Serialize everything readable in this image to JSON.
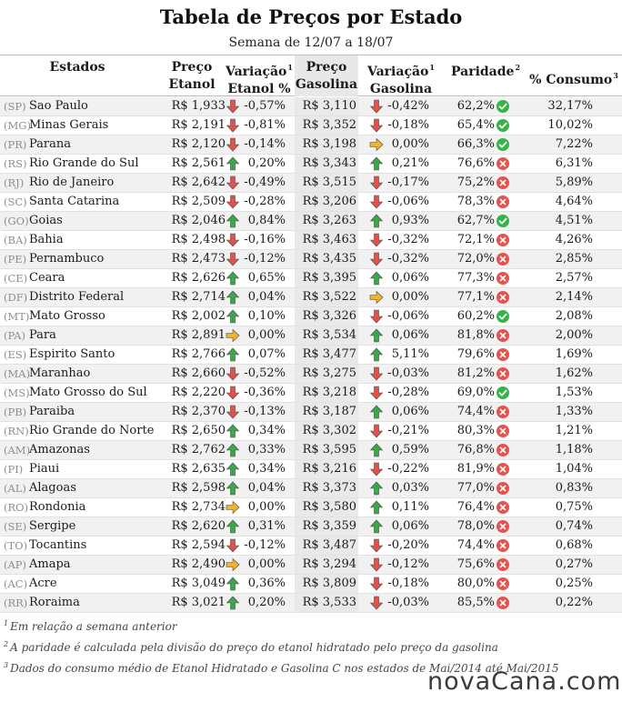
{
  "title": "Tabela de Preços por Estado",
  "subtitle": "Semana de 12/07 a 18/07",
  "columns": {
    "estados": "Estados",
    "preco_etanol_l1": "Preço",
    "preco_etanol_l2": "Etanol",
    "var_etanol_l1": "Variação",
    "var_etanol_l2": "Etanol %",
    "var_etanol_sup": "1",
    "preco_gas_l1": "Preço",
    "preco_gas_l2": "Gasolina",
    "var_gas_l1": "Variação",
    "var_gas_l2": "Gasolina %",
    "var_gas_sup": "1",
    "paridade": "Paridade",
    "paridade_sup": "2",
    "consumo": "% Consumo",
    "consumo_sup": "3"
  },
  "colors": {
    "up": "#39a84a",
    "down": "#e2524d",
    "flat": "#f4b32c",
    "ok": "#35b44a",
    "no": "#e5524f"
  },
  "rows": [
    {
      "abbr": "(SP)",
      "name": "Sao Paulo",
      "etanol": "R$ 1,933",
      "dir1": "down",
      "var1": "-0,57%",
      "gas": "R$ 3,110",
      "dir2": "down",
      "var2": "-0,42%",
      "par": "62,2%",
      "ok": true,
      "cons": "32,17%"
    },
    {
      "abbr": "(MG)",
      "name": "Minas Gerais",
      "etanol": "R$ 2,191",
      "dir1": "down",
      "var1": "-0,81%",
      "gas": "R$ 3,352",
      "dir2": "down",
      "var2": "-0,18%",
      "par": "65,4%",
      "ok": true,
      "cons": "10,02%"
    },
    {
      "abbr": "(PR)",
      "name": "Parana",
      "etanol": "R$ 2,120",
      "dir1": "down",
      "var1": "-0,14%",
      "gas": "R$ 3,198",
      "dir2": "flat",
      "var2": "0,00%",
      "par": "66,3%",
      "ok": true,
      "cons": "7,22%"
    },
    {
      "abbr": "(RS)",
      "name": "Rio Grande do Sul",
      "etanol": "R$ 2,561",
      "dir1": "up",
      "var1": "0,20%",
      "gas": "R$ 3,343",
      "dir2": "up",
      "var2": "0,21%",
      "par": "76,6%",
      "ok": false,
      "cons": "6,31%"
    },
    {
      "abbr": "(RJ)",
      "name": "Rio de Janeiro",
      "etanol": "R$ 2,642",
      "dir1": "down",
      "var1": "-0,49%",
      "gas": "R$ 3,515",
      "dir2": "down",
      "var2": "-0,17%",
      "par": "75,2%",
      "ok": false,
      "cons": "5,89%"
    },
    {
      "abbr": "(SC)",
      "name": "Santa Catarina",
      "etanol": "R$ 2,509",
      "dir1": "down",
      "var1": "-0,28%",
      "gas": "R$ 3,206",
      "dir2": "down",
      "var2": "-0,06%",
      "par": "78,3%",
      "ok": false,
      "cons": "4,64%"
    },
    {
      "abbr": "(GO)",
      "name": "Goias",
      "etanol": "R$ 2,046",
      "dir1": "up",
      "var1": "0,84%",
      "gas": "R$ 3,263",
      "dir2": "up",
      "var2": "0,93%",
      "par": "62,7%",
      "ok": true,
      "cons": "4,51%"
    },
    {
      "abbr": "(BA)",
      "name": "Bahia",
      "etanol": "R$ 2,498",
      "dir1": "down",
      "var1": "-0,16%",
      "gas": "R$ 3,463",
      "dir2": "down",
      "var2": "-0,32%",
      "par": "72,1%",
      "ok": false,
      "cons": "4,26%"
    },
    {
      "abbr": "(PE)",
      "name": "Pernambuco",
      "etanol": "R$ 2,473",
      "dir1": "down",
      "var1": "-0,12%",
      "gas": "R$ 3,435",
      "dir2": "down",
      "var2": "-0,32%",
      "par": "72,0%",
      "ok": false,
      "cons": "2,85%"
    },
    {
      "abbr": "(CE)",
      "name": "Ceara",
      "etanol": "R$ 2,626",
      "dir1": "up",
      "var1": "0,65%",
      "gas": "R$ 3,395",
      "dir2": "up",
      "var2": "0,06%",
      "par": "77,3%",
      "ok": false,
      "cons": "2,57%"
    },
    {
      "abbr": "(DF)",
      "name": "Distrito Federal",
      "etanol": "R$ 2,714",
      "dir1": "up",
      "var1": "0,04%",
      "gas": "R$ 3,522",
      "dir2": "flat",
      "var2": "0,00%",
      "par": "77,1%",
      "ok": false,
      "cons": "2,14%"
    },
    {
      "abbr": "(MT)",
      "name": "Mato Grosso",
      "etanol": "R$ 2,002",
      "dir1": "up",
      "var1": "0,10%",
      "gas": "R$ 3,326",
      "dir2": "down",
      "var2": "-0,06%",
      "par": "60,2%",
      "ok": true,
      "cons": "2,08%"
    },
    {
      "abbr": "(PA)",
      "name": "Para",
      "etanol": "R$ 2,891",
      "dir1": "flat",
      "var1": "0,00%",
      "gas": "R$ 3,534",
      "dir2": "up",
      "var2": "0,06%",
      "par": "81,8%",
      "ok": false,
      "cons": "2,00%"
    },
    {
      "abbr": "(ES)",
      "name": "Espirito Santo",
      "etanol": "R$ 2,766",
      "dir1": "up",
      "var1": "0,07%",
      "gas": "R$ 3,477",
      "dir2": "up",
      "var2": "5,11%",
      "par": "79,6%",
      "ok": false,
      "cons": "1,69%"
    },
    {
      "abbr": "(MA)",
      "name": "Maranhao",
      "etanol": "R$ 2,660",
      "dir1": "down",
      "var1": "-0,52%",
      "gas": "R$ 3,275",
      "dir2": "down",
      "var2": "-0,03%",
      "par": "81,2%",
      "ok": false,
      "cons": "1,62%"
    },
    {
      "abbr": "(MS)",
      "name": "Mato Grosso do Sul",
      "etanol": "R$ 2,220",
      "dir1": "down",
      "var1": "-0,36%",
      "gas": "R$ 3,218",
      "dir2": "down",
      "var2": "-0,28%",
      "par": "69,0%",
      "ok": true,
      "cons": "1,53%"
    },
    {
      "abbr": "(PB)",
      "name": "Paraiba",
      "etanol": "R$ 2,370",
      "dir1": "down",
      "var1": "-0,13%",
      "gas": "R$ 3,187",
      "dir2": "up",
      "var2": "0,06%",
      "par": "74,4%",
      "ok": false,
      "cons": "1,33%"
    },
    {
      "abbr": "(RN)",
      "name": "Rio Grande do Norte",
      "etanol": "R$ 2,650",
      "dir1": "up",
      "var1": "0,34%",
      "gas": "R$ 3,302",
      "dir2": "down",
      "var2": "-0,21%",
      "par": "80,3%",
      "ok": false,
      "cons": "1,21%"
    },
    {
      "abbr": "(AM)",
      "name": "Amazonas",
      "etanol": "R$ 2,762",
      "dir1": "up",
      "var1": "0,33%",
      "gas": "R$ 3,595",
      "dir2": "up",
      "var2": "0,59%",
      "par": "76,8%",
      "ok": false,
      "cons": "1,18%"
    },
    {
      "abbr": "(PI)",
      "name": "Piaui",
      "etanol": "R$ 2,635",
      "dir1": "up",
      "var1": "0,34%",
      "gas": "R$ 3,216",
      "dir2": "down",
      "var2": "-0,22%",
      "par": "81,9%",
      "ok": false,
      "cons": "1,04%"
    },
    {
      "abbr": "(AL)",
      "name": "Alagoas",
      "etanol": "R$ 2,598",
      "dir1": "up",
      "var1": "0,04%",
      "gas": "R$ 3,373",
      "dir2": "up",
      "var2": "0,03%",
      "par": "77,0%",
      "ok": false,
      "cons": "0,83%"
    },
    {
      "abbr": "(RO)",
      "name": "Rondonia",
      "etanol": "R$ 2,734",
      "dir1": "flat",
      "var1": "0,00%",
      "gas": "R$ 3,580",
      "dir2": "up",
      "var2": "0,11%",
      "par": "76,4%",
      "ok": false,
      "cons": "0,75%"
    },
    {
      "abbr": "(SE)",
      "name": "Sergipe",
      "etanol": "R$ 2,620",
      "dir1": "up",
      "var1": "0,31%",
      "gas": "R$ 3,359",
      "dir2": "up",
      "var2": "0,06%",
      "par": "78,0%",
      "ok": false,
      "cons": "0,74%"
    },
    {
      "abbr": "(TO)",
      "name": "Tocantins",
      "etanol": "R$ 2,594",
      "dir1": "down",
      "var1": "-0,12%",
      "gas": "R$ 3,487",
      "dir2": "down",
      "var2": "-0,20%",
      "par": "74,4%",
      "ok": false,
      "cons": "0,68%"
    },
    {
      "abbr": "(AP)",
      "name": "Amapa",
      "etanol": "R$ 2,490",
      "dir1": "flat",
      "var1": "0,00%",
      "gas": "R$ 3,294",
      "dir2": "down",
      "var2": "-0,12%",
      "par": "75,6%",
      "ok": false,
      "cons": "0,27%"
    },
    {
      "abbr": "(AC)",
      "name": "Acre",
      "etanol": "R$ 3,049",
      "dir1": "up",
      "var1": "0,36%",
      "gas": "R$ 3,809",
      "dir2": "down",
      "var2": "-0,18%",
      "par": "80,0%",
      "ok": false,
      "cons": "0,25%"
    },
    {
      "abbr": "(RR)",
      "name": "Roraima",
      "etanol": "R$ 3,021",
      "dir1": "up",
      "var1": "0,20%",
      "gas": "R$ 3,533",
      "dir2": "down",
      "var2": "-0,03%",
      "par": "85,5%",
      "ok": false,
      "cons": "0,22%"
    }
  ],
  "footnotes": [
    {
      "sup": "1",
      "text": "Em relação a semana anterior"
    },
    {
      "sup": "2",
      "text": "A paridade é calculada pela divisão do preço do etanol hidratado pelo preço da gasolina"
    },
    {
      "sup": "3",
      "text": "Dados do consumo médio de Etanol Hidratado e Gasolina C nos estados de Mai/2014 até Mai/2015"
    }
  ],
  "logo": "novaCana.com"
}
